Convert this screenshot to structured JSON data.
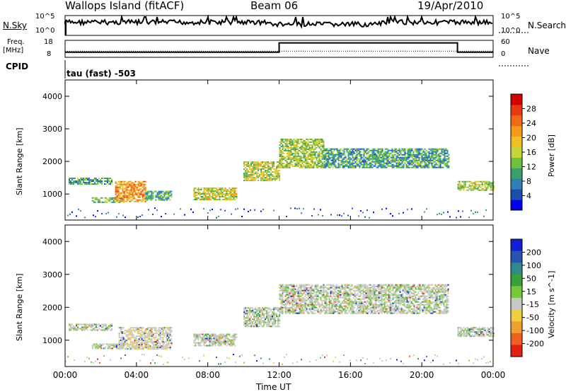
{
  "header": {
    "station": "Wallops Island (fitACF)",
    "beam": "Beam 06",
    "date": "19/Apr/2010",
    "cpid_label": "CPID",
    "cpid_value": "tau (fast) -503"
  },
  "nsky_panel": {
    "left_label": "N.Sky",
    "right_label": "N.Search",
    "left_ticks": [
      "10^5",
      "10^0"
    ],
    "right_ticks": [
      "10^5",
      "10^0"
    ]
  },
  "freq_panel": {
    "left_label_line1": "Freq.",
    "left_label_line2": "[MHz]",
    "right_label": "Nave",
    "left_ticks": [
      "18",
      "8"
    ],
    "right_ticks": [
      "60",
      "0"
    ],
    "freq_steps_mhz": [
      [
        0,
        11.0
      ],
      [
        12.0,
        11.0
      ],
      [
        12.0,
        16.5
      ],
      [
        22.0,
        16.5
      ],
      [
        22.0,
        11.0
      ],
      [
        24.0,
        11.0
      ]
    ],
    "nave": 22
  },
  "time_axis": {
    "label": "Time UT",
    "ticks": [
      "00:00",
      "04:00",
      "08:00",
      "12:00",
      "16:00",
      "20:00",
      "00:00"
    ],
    "range_hours": [
      0,
      24
    ]
  },
  "chart_data": [
    {
      "type": "heatmap",
      "name": "power",
      "ylabel": "Slant Range [km]",
      "ylim": [
        200,
        4500
      ],
      "yticks": [
        "1000",
        "2000",
        "3000",
        "4000"
      ],
      "colorbar_label": "Power [dB]",
      "colorbar_ticks": [
        "4",
        "8",
        "12",
        "16",
        "20",
        "24",
        "28"
      ],
      "colorbar_colors": [
        "#0000ee",
        "#1a4fb0",
        "#2f7fb2",
        "#3b9f6a",
        "#6cc23a",
        "#c8d23a",
        "#f0c020",
        "#f59a1c",
        "#ee6a14",
        "#e83a10",
        "#d20000"
      ],
      "echo_bands": [
        {
          "t0": 0.2,
          "t1": 2.6,
          "r0": 1300,
          "r1": 1500,
          "level": 0.35
        },
        {
          "t0": 1.5,
          "t1": 3.3,
          "r0": 750,
          "r1": 900,
          "level": 0.45
        },
        {
          "t0": 2.8,
          "t1": 4.5,
          "r0": 750,
          "r1": 1400,
          "level": 0.75
        },
        {
          "t0": 4.5,
          "t1": 6.0,
          "r0": 800,
          "r1": 1100,
          "level": 0.4
        },
        {
          "t0": 7.2,
          "t1": 9.6,
          "r0": 850,
          "r1": 1200,
          "level": 0.55
        },
        {
          "t0": 10.0,
          "t1": 12.0,
          "r0": 1400,
          "r1": 2000,
          "level": 0.55
        },
        {
          "t0": 12.0,
          "t1": 14.5,
          "r0": 1800,
          "r1": 2700,
          "level": 0.5
        },
        {
          "t0": 14.5,
          "t1": 21.5,
          "r0": 1800,
          "r1": 2400,
          "level": 0.35
        },
        {
          "t0": 22.0,
          "t1": 24.0,
          "r0": 1100,
          "r1": 1400,
          "level": 0.5
        }
      ]
    },
    {
      "type": "heatmap",
      "name": "velocity",
      "ylabel": "Slant Range [km]",
      "ylim": [
        200,
        4500
      ],
      "yticks": [
        "1000",
        "2000",
        "3000",
        "4000"
      ],
      "colorbar_label": "Velocity [m s^-1]",
      "colorbar_ticks": [
        "200",
        "100",
        "50",
        "15",
        "-15",
        "-50",
        "-100",
        "-200"
      ],
      "colorbar_colors": [
        "#1020d0",
        "#2a52b0",
        "#2f8a8a",
        "#3aa03a",
        "#78c83a",
        "#c8c8c8",
        "#f0d040",
        "#f0a030",
        "#f06020",
        "#e02010"
      ],
      "echo_bands": [
        {
          "t0": 0.2,
          "t1": 2.6,
          "r0": 1300,
          "r1": 1500,
          "level": 0.5
        },
        {
          "t0": 1.5,
          "t1": 3.3,
          "r0": 750,
          "r1": 900,
          "level": 0.5
        },
        {
          "t0": 3.0,
          "t1": 6.0,
          "r0": 750,
          "r1": 1400,
          "level": 0.35
        },
        {
          "t0": 7.2,
          "t1": 9.6,
          "r0": 850,
          "r1": 1200,
          "level": 0.6
        },
        {
          "t0": 10.0,
          "t1": 12.0,
          "r0": 1400,
          "r1": 2000,
          "level": 0.5
        },
        {
          "t0": 12.0,
          "t1": 21.5,
          "r0": 1800,
          "r1": 2700,
          "level": 0.5
        },
        {
          "t0": 22.0,
          "t1": 24.0,
          "r0": 1100,
          "r1": 1400,
          "level": 0.5
        }
      ]
    }
  ]
}
